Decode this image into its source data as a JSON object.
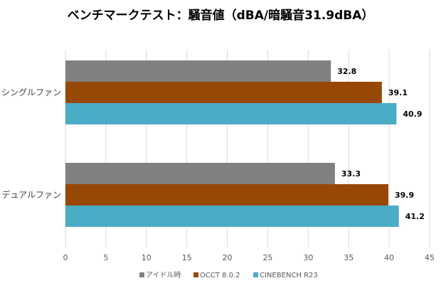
{
  "chart_data": {
    "type": "bar",
    "orientation": "horizontal",
    "title": "ベンチマークテスト：騒音値（dBA/暗騒音31.9dBA）",
    "categories": [
      "シングルファン",
      "デュアルファン"
    ],
    "series": [
      {
        "name": "アイドル時",
        "color": "#808080",
        "values": [
          32.8,
          33.3
        ]
      },
      {
        "name": "OCCT 8.0.2",
        "color": "#974706",
        "values": [
          39.1,
          39.9
        ]
      },
      {
        "name": "CINEBENCH R23",
        "color": "#4BACC6",
        "values": [
          40.9,
          41.2
        ]
      }
    ],
    "xlim": [
      0,
      45
    ],
    "xticks": [
      0,
      5,
      10,
      15,
      20,
      25,
      30,
      35,
      40,
      45
    ],
    "grid": true,
    "legend": "bottom"
  }
}
